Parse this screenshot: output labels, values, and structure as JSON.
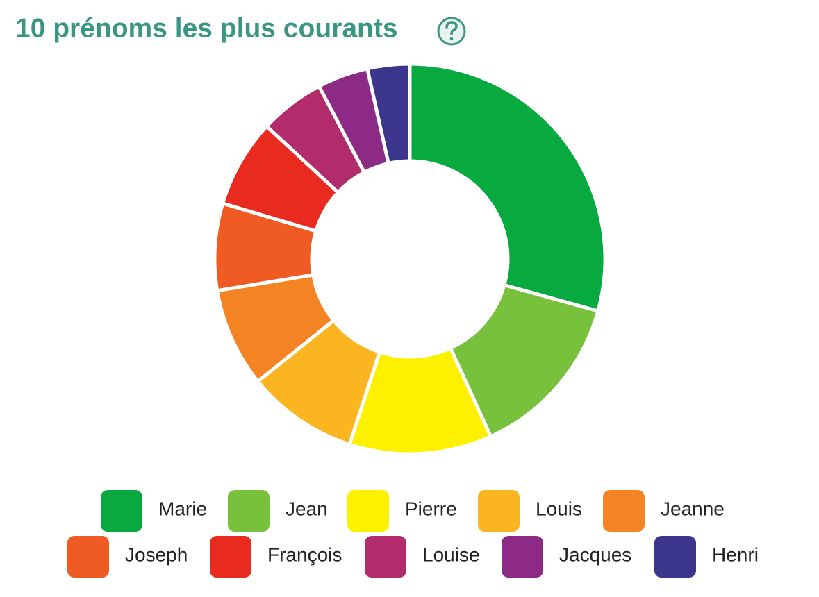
{
  "chart_data": {
    "type": "donut",
    "title": "10 prénoms les plus courants",
    "categories": [
      "Marie",
      "Jean",
      "Pierre",
      "Louis",
      "Jeanne",
      "Joseph",
      "François",
      "Louise",
      "Jacques",
      "Henri"
    ],
    "values": [
      29.3,
      13.9,
      11.8,
      9.2,
      8.2,
      7.2,
      7.3,
      5.4,
      4.2,
      3.5
    ],
    "colors": [
      "#08aa40",
      "#77c13d",
      "#fdf100",
      "#fbb521",
      "#f48423",
      "#ef5b23",
      "#e92a1e",
      "#b22c6c",
      "#8c2a86",
      "#3c368c"
    ]
  }
}
